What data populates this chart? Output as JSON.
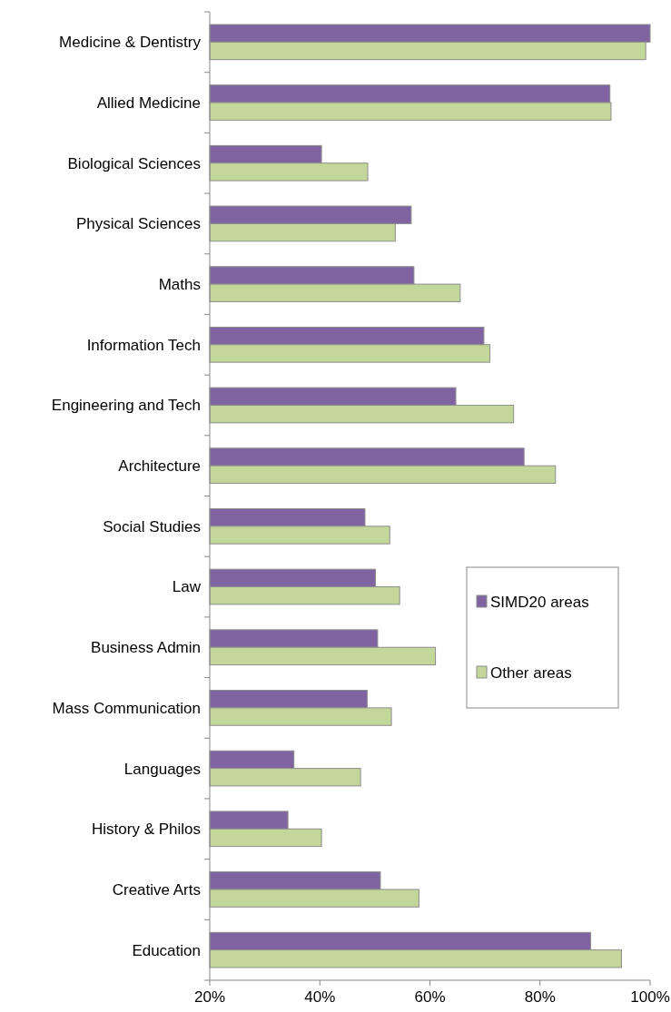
{
  "chart_data": {
    "type": "bar",
    "orientation": "horizontal",
    "categories": [
      "Medicine & Dentistry",
      "Allied Medicine",
      "Biological Sciences",
      "Physical Sciences",
      "Maths",
      "Information Tech",
      "Engineering and Tech",
      "Architecture",
      "Social Studies",
      "Law",
      "Business Admin",
      "Mass Communication",
      "Languages",
      "History & Philos",
      "Creative Arts",
      "Education"
    ],
    "series": [
      {
        "name": "SIMD20 areas",
        "color": "#8064a2",
        "values": [
          100.0,
          92.7,
          40.3,
          56.6,
          57.1,
          69.8,
          64.7,
          77.1,
          48.2,
          50.1,
          50.5,
          48.6,
          35.3,
          34.2,
          51.0,
          89.2
        ]
      },
      {
        "name": "Other areas",
        "color": "#c4d79b",
        "values": [
          99.2,
          92.9,
          48.7,
          53.7,
          65.5,
          70.9,
          75.2,
          82.8,
          52.7,
          54.5,
          61.0,
          53.0,
          47.4,
          40.3,
          58.0,
          94.8
        ]
      }
    ],
    "xlim": [
      20,
      100
    ],
    "xticks": [
      {
        "value": 20,
        "label": "20%"
      },
      {
        "value": 40,
        "label": "40%"
      },
      {
        "value": 60,
        "label": "60%"
      },
      {
        "value": 80,
        "label": "80%"
      },
      {
        "value": 100,
        "label": "100%"
      }
    ],
    "legend": "right",
    "grid": false
  }
}
